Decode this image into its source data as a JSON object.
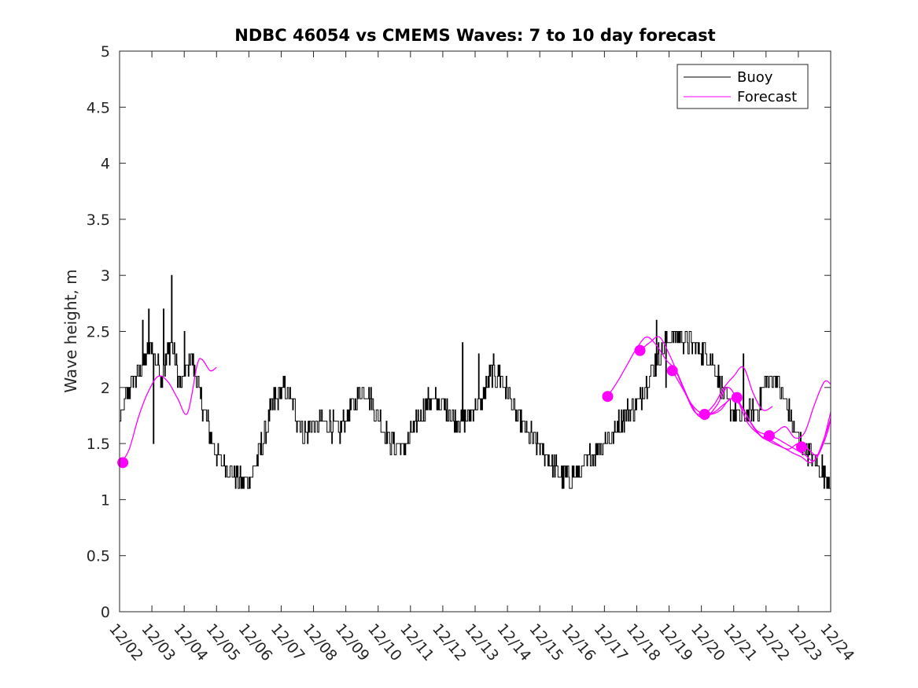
{
  "chart_data": {
    "type": "line",
    "title": "NDBC 46054 vs CMEMS Waves: 7 to 10 day forecast",
    "xlabel": "",
    "ylabel": "Wave height, m",
    "xlim": [
      0,
      22
    ],
    "ylim": [
      0,
      5
    ],
    "yticks": [
      0,
      0.5,
      1,
      1.5,
      2,
      2.5,
      3,
      3.5,
      4,
      4.5,
      5
    ],
    "ytick_labels": [
      "0",
      "0.5",
      "1",
      "1.5",
      "2",
      "2.5",
      "3",
      "3.5",
      "4",
      "4.5",
      "5"
    ],
    "xtick_labels": [
      "12/02",
      "12/03",
      "12/04",
      "12/05",
      "12/06",
      "12/07",
      "12/08",
      "12/09",
      "12/10",
      "12/11",
      "12/12",
      "12/13",
      "12/14",
      "12/15",
      "12/16",
      "12/17",
      "12/18",
      "12/19",
      "12/20",
      "12/21",
      "12/22",
      "12/23",
      "12/24"
    ],
    "grid": false,
    "legend": {
      "location": "top-right",
      "entries": [
        "Buoy",
        "Forecast"
      ]
    },
    "colors": {
      "buoy": "#000000",
      "forecast": "#ff00ff"
    },
    "buoy_anchors": {
      "x": [
        0.0,
        0.3,
        0.7,
        1.0,
        1.3,
        1.6,
        1.9,
        2.2,
        2.5,
        2.8,
        3.0,
        3.3,
        3.6,
        3.9,
        4.2,
        4.5,
        4.8,
        5.1,
        5.4,
        5.7,
        6.0,
        6.4,
        6.8,
        7.2,
        7.6,
        8.0,
        8.4,
        8.8,
        9.2,
        9.6,
        10.0,
        10.4,
        10.8,
        11.2,
        11.5,
        11.8,
        12.2,
        12.6,
        13.0,
        13.4,
        13.7,
        14.0,
        14.3,
        14.6,
        14.9,
        15.2,
        15.5,
        15.8,
        16.1,
        16.4,
        16.7,
        17.0,
        17.3,
        17.6,
        17.9,
        18.2,
        18.5,
        18.8,
        19.1,
        19.4,
        19.7,
        20.0,
        20.3,
        20.6,
        20.9,
        21.2,
        21.5,
        21.8,
        22.0
      ],
      "y": [
        1.7,
        2.0,
        2.2,
        2.35,
        2.1,
        2.4,
        2.0,
        2.3,
        1.9,
        1.6,
        1.4,
        1.3,
        1.2,
        1.15,
        1.3,
        1.6,
        1.9,
        2.0,
        1.8,
        1.6,
        1.65,
        1.7,
        1.6,
        1.85,
        2.0,
        1.75,
        1.5,
        1.45,
        1.7,
        1.9,
        1.85,
        1.7,
        1.75,
        1.85,
        2.15,
        2.1,
        1.8,
        1.6,
        1.45,
        1.3,
        1.2,
        1.2,
        1.25,
        1.4,
        1.5,
        1.55,
        1.7,
        1.8,
        1.9,
        2.1,
        2.3,
        2.45,
        2.45,
        2.4,
        2.35,
        2.3,
        2.1,
        1.85,
        1.75,
        1.75,
        1.8,
        2.05,
        2.1,
        1.85,
        1.6,
        1.45,
        1.35,
        1.25,
        1.2
      ],
      "spikes": [
        [
          0.55,
          2.2
        ],
        [
          0.7,
          2.6
        ],
        [
          0.9,
          2.7
        ],
        [
          1.05,
          1.5
        ],
        [
          1.35,
          2.7
        ],
        [
          1.6,
          3.0
        ],
        [
          2.0,
          2.5
        ],
        [
          2.5,
          1.9
        ],
        [
          10.6,
          2.4
        ],
        [
          11.1,
          2.3
        ],
        [
          16.6,
          2.6
        ],
        [
          16.9,
          2.0
        ],
        [
          17.2,
          2.5
        ],
        [
          19.3,
          2.3
        ]
      ]
    },
    "forecast_series": [
      {
        "name": "Forecast 12/02",
        "x": [
          0.05,
          0.3,
          0.6,
          0.9,
          1.2,
          1.5,
          1.8,
          2.1,
          2.4,
          2.55,
          2.8,
          3.0
        ],
        "y": [
          1.33,
          1.45,
          1.75,
          1.97,
          2.1,
          2.05,
          1.9,
          1.77,
          2.2,
          2.25,
          2.15,
          2.18
        ]
      },
      {
        "name": "Forecast 12/17",
        "x": [
          15.1,
          15.4,
          15.7,
          16.0,
          16.3,
          16.6,
          16.9,
          17.2,
          17.5,
          17.8,
          18.1,
          18.4,
          18.7,
          19.0,
          19.3,
          19.6,
          19.9,
          20.2
        ],
        "y": [
          1.92,
          2.05,
          2.2,
          2.35,
          2.45,
          2.38,
          2.25,
          2.15,
          1.95,
          1.78,
          1.77,
          1.85,
          2.0,
          2.1,
          2.18,
          1.95,
          1.8,
          1.83
        ]
      },
      {
        "name": "Forecast 12/18",
        "x": [
          16.1,
          16.4,
          16.7,
          17.0,
          17.3,
          17.6,
          17.9,
          18.2,
          18.5,
          18.8,
          19.1,
          19.4,
          19.7,
          20.0,
          20.3,
          20.6,
          20.9,
          21.2,
          21.5,
          21.8,
          22.0
        ],
        "y": [
          2.33,
          2.4,
          2.45,
          2.3,
          2.1,
          1.9,
          1.75,
          1.75,
          1.85,
          2.0,
          1.9,
          1.7,
          1.6,
          1.55,
          1.6,
          1.65,
          1.55,
          1.6,
          1.85,
          2.05,
          2.03
        ]
      },
      {
        "name": "Forecast 12/19",
        "x": [
          17.1,
          17.4,
          17.7,
          18.0,
          18.3,
          18.6,
          18.9,
          19.2,
          19.5,
          19.8,
          20.1,
          20.4,
          20.7,
          21.0,
          21.3,
          21.6,
          21.9,
          22.0
        ],
        "y": [
          2.15,
          2.0,
          1.85,
          1.77,
          1.76,
          1.8,
          1.9,
          1.85,
          1.7,
          1.58,
          1.52,
          1.48,
          1.45,
          1.5,
          1.45,
          1.4,
          1.6,
          1.73
        ]
      },
      {
        "name": "Forecast 12/20",
        "x": [
          18.1,
          18.4,
          18.7,
          19.0,
          19.3,
          19.6,
          19.9,
          20.2,
          20.5,
          20.8,
          21.1,
          21.4,
          21.7,
          22.0
        ],
        "y": [
          1.76,
          1.78,
          1.85,
          1.9,
          1.8,
          1.65,
          1.55,
          1.52,
          1.47,
          1.42,
          1.38,
          1.33,
          1.45,
          1.78
        ]
      },
      {
        "name": "Forecast 12/21",
        "x": [
          19.1,
          19.4,
          19.7,
          20.0,
          20.3,
          20.6,
          20.9,
          21.2,
          21.5,
          21.8,
          22.0
        ],
        "y": [
          1.91,
          1.75,
          1.62,
          1.58,
          1.55,
          1.5,
          1.45,
          1.4,
          1.35,
          1.55,
          1.72
        ]
      }
    ],
    "forecast_markers": {
      "x": [
        0.1,
        15.1,
        16.1,
        17.1,
        18.1,
        19.1,
        20.1,
        21.1
      ],
      "y": [
        1.33,
        1.92,
        2.33,
        2.15,
        1.76,
        1.91,
        1.57,
        1.47
      ]
    }
  }
}
